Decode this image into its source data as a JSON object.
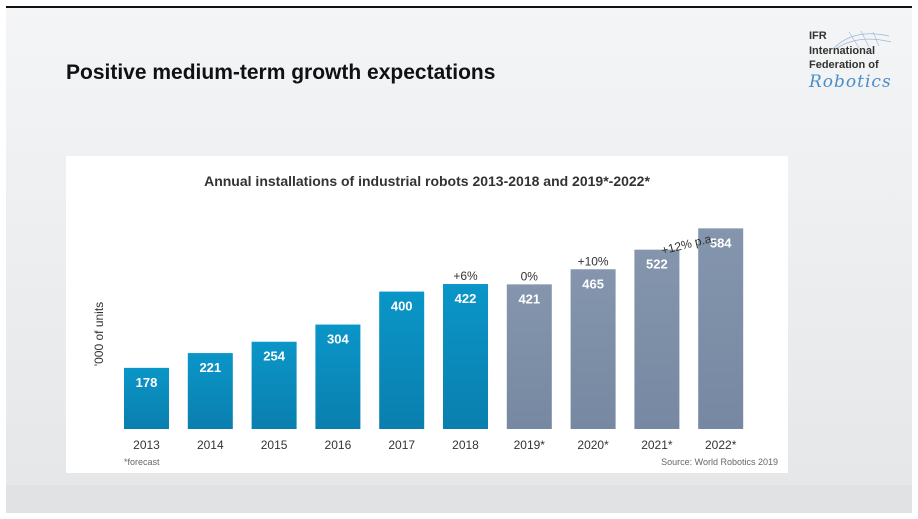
{
  "slide": {
    "title": "Positive medium-term growth expectations"
  },
  "logo": {
    "line1": "IFR",
    "line2": "International",
    "line3": "Federation of",
    "line4": "Robotics"
  },
  "colors": {
    "actual": "#0a96c8",
    "forecast": "#8495ad"
  },
  "chart_data": {
    "type": "bar",
    "title": "Annual installations of industrial robots 2013-2018 and 2019*-2022*",
    "ylabel": "'000 of units",
    "xlabel": "",
    "ylim": [
      0,
      620
    ],
    "categories": [
      "2013",
      "2014",
      "2015",
      "2016",
      "2017",
      "2018",
      "2019*",
      "2020*",
      "2021*",
      "2022*"
    ],
    "values": [
      178,
      221,
      254,
      304,
      400,
      422,
      421,
      465,
      522,
      584
    ],
    "forecast_from_index": 6,
    "annotations": [
      {
        "index": 5,
        "text": "+6%"
      },
      {
        "index": 6,
        "text": "0%"
      },
      {
        "index": 7,
        "text": "+10%"
      }
    ],
    "trend_annotation": {
      "text": "+12% p.a."
    },
    "footnote": "*forecast",
    "source": "Source: World Robotics 2019"
  }
}
